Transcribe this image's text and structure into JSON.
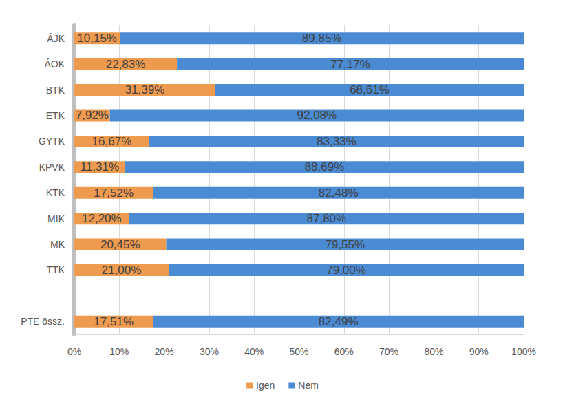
{
  "chart_data": {
    "type": "bar",
    "orientation": "horizontal",
    "stacked": true,
    "data_labels": true,
    "grid": true,
    "legend": "bottom",
    "categories": [
      "ÁJK",
      "ÁOK",
      "BTK",
      "ETK",
      "GYTK",
      "KPVK",
      "KTK",
      "MIK",
      "MK",
      "TTK",
      null,
      "PTE össz."
    ],
    "series": [
      {
        "name": "Igen",
        "color": "#ee9a4f",
        "values": [
          10.15,
          22.83,
          31.39,
          7.92,
          16.67,
          11.31,
          17.52,
          12.2,
          20.45,
          21.0,
          null,
          17.51
        ],
        "value_labels": [
          "10,15%",
          "22,83%",
          "31,39%",
          "7,92%",
          "16,67%",
          "11,31%",
          "17,52%",
          "12,20%",
          "20,45%",
          "21,00%",
          null,
          "17,51%"
        ]
      },
      {
        "name": "Nem",
        "color": "#4a8bd3",
        "values": [
          89.85,
          77.17,
          68.61,
          92.08,
          83.33,
          88.69,
          82.48,
          87.8,
          79.55,
          79.0,
          null,
          82.49
        ],
        "value_labels": [
          "89,85%",
          "77,17%",
          "68,61%",
          "92,08%",
          "83,33%",
          "88,69%",
          "82,48%",
          "87,80%",
          "79,55%",
          "79,00%",
          null,
          "82,49%"
        ]
      }
    ],
    "xlim": [
      0,
      100
    ],
    "xticks": [
      {
        "value": 0,
        "label": "0%"
      },
      {
        "value": 10,
        "label": "10%"
      },
      {
        "value": 20,
        "label": "20%"
      },
      {
        "value": 30,
        "label": "30%"
      },
      {
        "value": 40,
        "label": "40%"
      },
      {
        "value": 50,
        "label": "50%"
      },
      {
        "value": 60,
        "label": "60%"
      },
      {
        "value": 70,
        "label": "70%"
      },
      {
        "value": 80,
        "label": "80%"
      },
      {
        "value": 90,
        "label": "90%"
      },
      {
        "value": 100,
        "label": "100%"
      }
    ]
  }
}
